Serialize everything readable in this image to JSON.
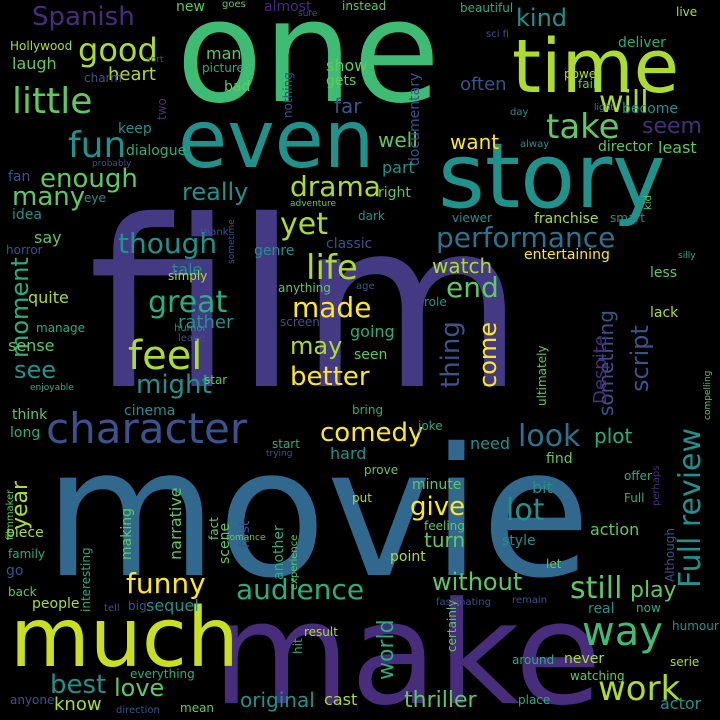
{
  "colors": {
    "background": "#000000",
    "dark_purple": "#472d7b",
    "purple": "#443983",
    "indigo": "#3b528b",
    "slate_blue": "#31688e",
    "steel": "#2c728e",
    "teal": "#21918c",
    "teal_green": "#28ae80",
    "green": "#3fbc73",
    "lime": "#5ec962",
    "yellow_green": "#addc30",
    "yellow": "#fde725"
  },
  "words": [
    "film",
    "movie",
    "make",
    "one",
    "much",
    "story",
    "even",
    "time",
    "character",
    "feel",
    "Full review",
    "way",
    "work",
    "life",
    "performance",
    "little",
    "fun",
    "good",
    "will",
    "take",
    "comedy",
    "look",
    "great",
    "made",
    "funny",
    "audience",
    "drama",
    "really",
    "might",
    "better",
    "without",
    "still",
    "world",
    "lot",
    "give",
    "enough",
    "yet",
    "though",
    "end",
    "many",
    "seem",
    "moment",
    "script",
    "something",
    "thing",
    "best",
    "love",
    "may",
    "year",
    "see",
    "Spanish",
    "kind",
    "original",
    "thriller",
    "play",
    "come",
    "know",
    "watch",
    "plot",
    "turn",
    "heart",
    "well",
    "want",
    "laugh",
    "fan",
    "idea",
    "say",
    "quite",
    "sense",
    "think",
    "long",
    "piece",
    "family",
    "go",
    "back",
    "people",
    "keep",
    "tale",
    "rather",
    "hard",
    "need",
    "bit",
    "minute",
    "point",
    "style",
    "action",
    "sequel",
    "never",
    "watching",
    "cast",
    "everything",
    "anyone",
    "direction",
    "mean",
    "place",
    "actor",
    "now",
    "real",
    "around",
    "result",
    "certainly",
    "remain",
    "fascinating",
    "let",
    "Although",
    "perhaps",
    "serie",
    "humour",
    "offer",
    "find",
    "prove",
    "put",
    "first",
    "fact",
    "scene",
    "another",
    "experience",
    "romance",
    "feeling",
    "trying",
    "start",
    "joke",
    "bring",
    "cinema",
    "star",
    "seen",
    "going",
    "screen",
    "humor",
    "leave",
    "manage",
    "enjoyable",
    "horror",
    "simply",
    "genre",
    "classic",
    "anything",
    "age",
    "role",
    "dark",
    "viewer",
    "franchise",
    "smart",
    "kid",
    "entertaining",
    "less",
    "lack",
    "silly",
    "ultimately",
    "Despite",
    "compelling",
    "become",
    "least",
    "director",
    "alway",
    "day",
    "light",
    "fail",
    "power",
    "deliver",
    "live",
    "beautiful",
    "instead",
    "sure",
    "almost",
    "goes",
    "new",
    "man",
    "picture",
    "sci fi",
    "nothing",
    "documentary",
    "show",
    "gets",
    "often",
    "far",
    "bad",
    "charm",
    "Hollywood",
    "sort",
    "two",
    "dialogue",
    "probably",
    "eye",
    "sometime",
    "adventure",
    "thank",
    "right",
    "part",
    "interesting",
    "making",
    "narrative",
    "filmmaker",
    "tell",
    "big",
    "hit",
    "Full"
  ]
}
